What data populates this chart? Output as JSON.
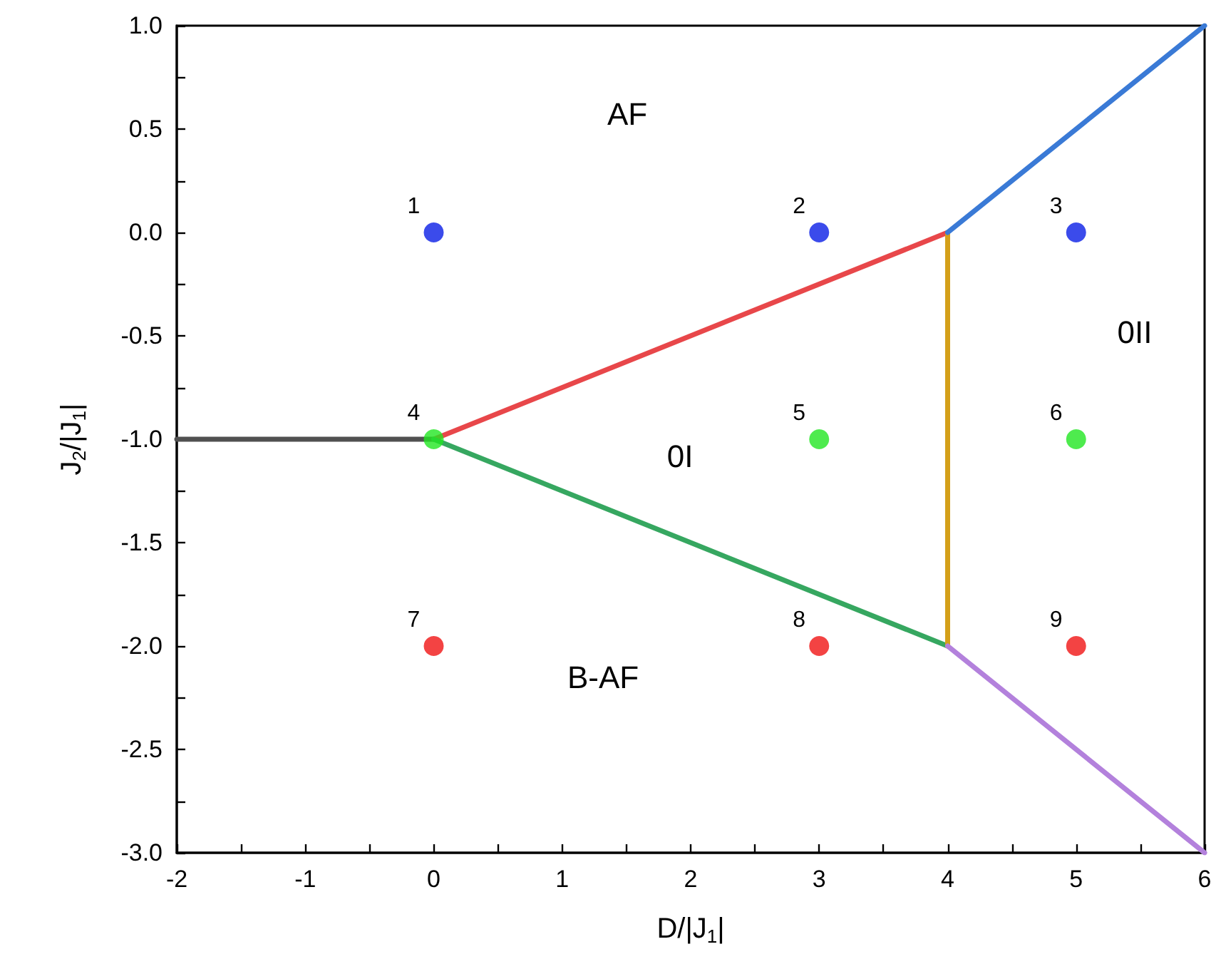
{
  "chart_data": {
    "type": "line",
    "xlabel": "D/|J$_{1}$|",
    "ylabel": "J$_{2}$/|J$_{1}$|",
    "xlim": [
      -2,
      6
    ],
    "ylim": [
      -3,
      1
    ],
    "xticks": [
      -2,
      {
        "value": -1.5,
        "label": null
      },
      -1,
      {
        "value": -0.5,
        "label": null
      },
      0,
      {
        "value": 0.5,
        "label": null
      },
      1,
      {
        "value": 1.5,
        "label": null
      },
      2,
      {
        "value": 2.5,
        "label": null
      },
      3,
      {
        "value": 3.5,
        "label": null
      },
      4,
      {
        "value": 4.5,
        "label": null
      },
      5,
      {
        "value": 5.5,
        "label": null
      },
      6
    ],
    "yticks": [
      {
        "value": -3,
        "label": "-3.0"
      },
      {
        "value": -2.75,
        "label": null
      },
      {
        "value": -2.5,
        "label": "-2.5"
      },
      {
        "value": -2.25,
        "label": null
      },
      {
        "value": -2,
        "label": "-2.0"
      },
      {
        "value": -1.75,
        "label": null
      },
      {
        "value": -1.5,
        "label": "-1.5"
      },
      {
        "value": -1.25,
        "label": null
      },
      {
        "value": -1,
        "label": "-1.0"
      },
      {
        "value": -0.75,
        "label": null
      },
      {
        "value": -0.5,
        "label": "-0.5"
      },
      {
        "value": -0.25,
        "label": null
      },
      {
        "value": 0,
        "label": "0.0"
      },
      {
        "value": 0.25,
        "label": null
      },
      {
        "value": 0.5,
        "label": "0.5"
      },
      {
        "value": 0.75,
        "label": null
      },
      {
        "value": 1,
        "label": "1.0"
      }
    ],
    "line_style": "solid",
    "series": [
      {
        "color": "#505050",
        "x": [
          -2,
          0
        ],
        "values": [
          -1,
          -1
        ],
        "marker": "none"
      },
      {
        "color": "#e8474a",
        "x": [
          0,
          4
        ],
        "values": [
          -1,
          0
        ],
        "marker": "none"
      },
      {
        "color": "#36a760",
        "x": [
          0,
          4
        ],
        "values": [
          -1,
          -2
        ],
        "marker": "none"
      },
      {
        "color": "#d4a01a",
        "x": [
          4,
          4
        ],
        "values": [
          0,
          -2
        ],
        "marker": "none"
      },
      {
        "color": "#3a7ad6",
        "x": [
          4,
          6
        ],
        "values": [
          0,
          1
        ],
        "marker": "none"
      },
      {
        "color": "#b381dc",
        "x": [
          4,
          6
        ],
        "values": [
          -2,
          -3
        ],
        "marker": "none"
      },
      {
        "type": "scatter",
        "color": "#0a1ee6",
        "x": [
          0,
          3,
          5
        ],
        "values": [
          0,
          0,
          0
        ],
        "marker": "circle"
      },
      {
        "type": "scatter",
        "color": "#22e622",
        "x": [
          0,
          3,
          5
        ],
        "values": [
          -1,
          -1,
          -1
        ],
        "marker": "circle"
      },
      {
        "type": "scatter",
        "color": "#f01414",
        "x": [
          0,
          3,
          5
        ],
        "values": [
          -2,
          -2,
          -2
        ],
        "marker": "circle"
      }
    ],
    "annotations": [
      "AF",
      "0I",
      "0II",
      "B-AF",
      {
        "text": "1",
        "x": 0,
        "y": 0
      },
      {
        "text": "2",
        "x": 3,
        "y": 0
      },
      {
        "text": "3",
        "x": 5,
        "y": 0
      },
      {
        "text": "4",
        "x": 0,
        "y": -1
      },
      {
        "text": "5",
        "x": 3,
        "y": -1
      },
      {
        "text": "6",
        "x": 5,
        "y": -1
      },
      {
        "text": "7",
        "x": 0,
        "y": -2
      },
      {
        "text": "8",
        "x": 3,
        "y": -2
      },
      {
        "text": "9",
        "x": 5,
        "y": -2
      }
    ]
  }
}
